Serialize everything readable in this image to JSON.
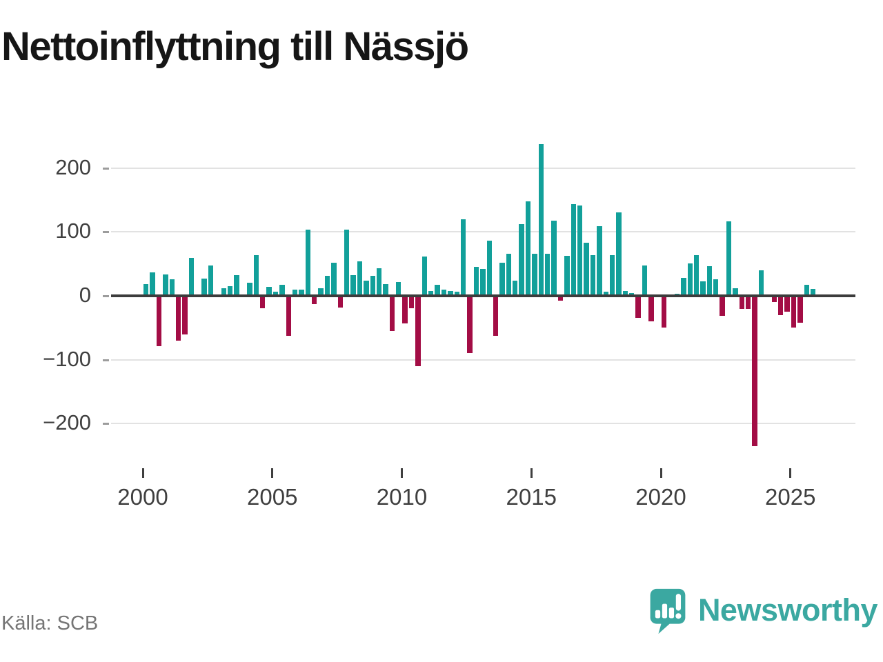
{
  "title": "Nettoinflyttning till Nässjö",
  "footer": {
    "source": "Källa: SCB"
  },
  "brand": {
    "name": "Newsworthy",
    "icon": "newsworthy-speech-bubble-chart-icon"
  },
  "colors": {
    "positive_bar": "#12a09a",
    "negative_bar": "#a30d45",
    "grid": "#e2e2e2",
    "zero_line": "#3c3c3c",
    "axis_text": "#3f3f3f",
    "title_text": "#161616",
    "source_text": "#757575",
    "brand_teal": "#3ba8a1"
  },
  "chart_data": {
    "type": "bar",
    "title": "Nettoinflyttning till Nässjö",
    "frequency": "quarterly",
    "period_start": "2000 Q1",
    "period_end": "2025 Q4",
    "x_tick_labels": [
      "2000",
      "2005",
      "2010",
      "2015",
      "2020",
      "2025"
    ],
    "y_tick_labels": [
      "200",
      "100",
      "0",
      "−100",
      "−200"
    ],
    "y_ticks": [
      200,
      100,
      0,
      -100,
      -200
    ],
    "ylim": [
      -254,
      252
    ],
    "grid": "horizontal",
    "legend": "none",
    "values": [
      18,
      37,
      -79,
      33,
      26,
      -70,
      -60,
      59,
      0,
      27,
      47,
      0,
      12,
      15,
      32,
      0,
      20,
      64,
      -19,
      14,
      6,
      17,
      -63,
      10,
      10,
      104,
      -13,
      12,
      31,
      52,
      -18,
      104,
      32,
      54,
      24,
      31,
      43,
      18,
      -55,
      22,
      -43,
      -19,
      -110,
      62,
      8,
      17,
      10,
      8,
      6,
      120,
      -90,
      45,
      42,
      86,
      -63,
      52,
      66,
      24,
      112,
      148,
      66,
      237,
      66,
      118,
      -8,
      63,
      143,
      141,
      83,
      64,
      109,
      6,
      64,
      130,
      8,
      4,
      -35,
      48,
      -40,
      0,
      -50,
      0,
      3,
      28,
      51,
      64,
      23,
      46,
      26,
      -31,
      116,
      12,
      -20,
      -20,
      -235,
      40,
      2,
      -10,
      -30,
      -25,
      -50,
      -42,
      17,
      11
    ]
  }
}
